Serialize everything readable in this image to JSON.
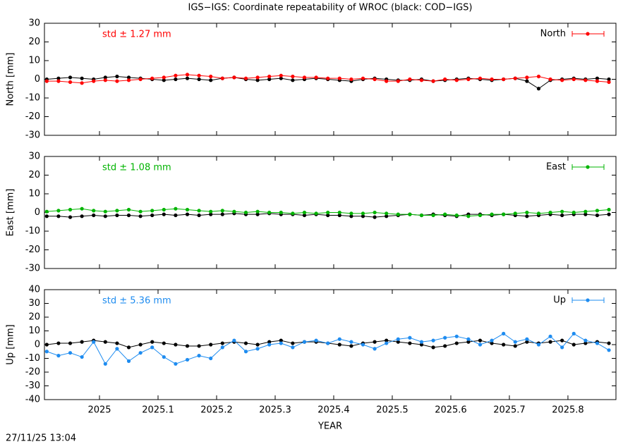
{
  "timestamp": "27/11/25 13:04",
  "chart_data": [
    {
      "type": "line",
      "title": "IGS−IGS: Coordinate repeatability of WROC (black: COD−IGS)",
      "ylabel": "North [mm]",
      "annotation": "std ± 1.27 mm",
      "legend": "upper right",
      "xlim": [
        2024.906,
        2025.882
      ],
      "xticks": [
        2025,
        2025.1,
        2025.2,
        2025.3,
        2025.4,
        2025.5,
        2025.6,
        2025.7,
        2025.8
      ],
      "ylim": [
        -30,
        30
      ],
      "yticks": [
        -30,
        -20,
        -10,
        0,
        10,
        20,
        30
      ],
      "x": [
        2024.91,
        2024.93,
        2024.95,
        2024.97,
        2024.99,
        2025.01,
        2025.03,
        2025.05,
        2025.07,
        2025.09,
        2025.11,
        2025.13,
        2025.15,
        2025.17,
        2025.19,
        2025.21,
        2025.23,
        2025.25,
        2025.27,
        2025.29,
        2025.31,
        2025.33,
        2025.35,
        2025.37,
        2025.39,
        2025.41,
        2025.43,
        2025.45,
        2025.47,
        2025.49,
        2025.51,
        2025.53,
        2025.55,
        2025.57,
        2025.59,
        2025.61,
        2025.63,
        2025.65,
        2025.67,
        2025.69,
        2025.71,
        2025.73,
        2025.75,
        2025.77,
        2025.79,
        2025.81,
        2025.83,
        2025.85,
        2025.87
      ],
      "series": [
        {
          "color": "#000000",
          "values": [
            0,
            0.5,
            1,
            0.5,
            0,
            1,
            1.5,
            1,
            0.5,
            0,
            -0.5,
            0,
            0.5,
            0,
            -0.5,
            0.5,
            1,
            0,
            -0.5,
            0,
            0.5,
            -0.5,
            0,
            0.5,
            0,
            -0.5,
            -1,
            0,
            0.5,
            0,
            -0.5,
            -0.5,
            0,
            -1,
            -0.5,
            0,
            0.5,
            0,
            -0.5,
            0,
            0.5,
            -1,
            -5,
            -0.5,
            0,
            0.5,
            0,
            0.5,
            0
          ]
        },
        {
          "name": "North",
          "color": "#ff0000",
          "values": [
            -1,
            -1,
            -1.5,
            -2,
            -1,
            -0.5,
            -1,
            -0.5,
            0,
            0.5,
            1,
            2,
            2.5,
            2,
            1.5,
            0.5,
            1,
            0.5,
            1,
            1.5,
            2,
            1.5,
            1,
            1,
            0.5,
            0.5,
            0,
            0.5,
            0,
            -1,
            -1,
            0,
            -0.5,
            -1,
            0,
            -0.5,
            0,
            0.5,
            0,
            0,
            0.5,
            1,
            1.5,
            0,
            -0.5,
            0,
            -0.5,
            -1,
            -1.5
          ]
        }
      ]
    },
    {
      "type": "line",
      "ylabel": "East [mm]",
      "annotation": "std ± 1.08 mm",
      "legend": "upper right",
      "xlim": [
        2024.906,
        2025.882
      ],
      "xticks": [
        2025,
        2025.1,
        2025.2,
        2025.3,
        2025.4,
        2025.5,
        2025.6,
        2025.7,
        2025.8
      ],
      "ylim": [
        -30,
        30
      ],
      "yticks": [
        -30,
        -20,
        -10,
        0,
        10,
        20,
        30
      ],
      "x": [
        2024.91,
        2024.93,
        2024.95,
        2024.97,
        2024.99,
        2025.01,
        2025.03,
        2025.05,
        2025.07,
        2025.09,
        2025.11,
        2025.13,
        2025.15,
        2025.17,
        2025.19,
        2025.21,
        2025.23,
        2025.25,
        2025.27,
        2025.29,
        2025.31,
        2025.33,
        2025.35,
        2025.37,
        2025.39,
        2025.41,
        2025.43,
        2025.45,
        2025.47,
        2025.49,
        2025.51,
        2025.53,
        2025.55,
        2025.57,
        2025.59,
        2025.61,
        2025.63,
        2025.65,
        2025.67,
        2025.69,
        2025.71,
        2025.73,
        2025.75,
        2025.77,
        2025.79,
        2025.81,
        2025.83,
        2025.85,
        2025.87
      ],
      "series": [
        {
          "color": "#000000",
          "values": [
            -2,
            -2,
            -2.5,
            -2,
            -1.5,
            -2,
            -1.5,
            -1.5,
            -2,
            -1.5,
            -1,
            -1.5,
            -1,
            -1.5,
            -1,
            -1,
            -0.5,
            -1,
            -1,
            -0.5,
            -1,
            -1,
            -1.5,
            -1,
            -1.5,
            -1.5,
            -2,
            -2,
            -2.5,
            -2,
            -1.5,
            -1,
            -1.5,
            -1,
            -1.5,
            -2,
            -1,
            -1,
            -1.5,
            -1,
            -1.5,
            -2,
            -1.5,
            -1,
            -1.5,
            -1,
            -1,
            -1.5,
            -1
          ]
        },
        {
          "name": "East",
          "color": "#00b400",
          "values": [
            0.5,
            1,
            1.5,
            2,
            1,
            0.5,
            1,
            1.5,
            0.5,
            1,
            1.5,
            2,
            1.5,
            1,
            0.5,
            1,
            0.5,
            0,
            0.5,
            0,
            0,
            -0.5,
            0,
            -0.5,
            0,
            0,
            -0.5,
            -0.5,
            0,
            -0.5,
            -1,
            -1,
            -1.5,
            -1.5,
            -1,
            -1.5,
            -2,
            -1.5,
            -1,
            -1,
            -0.5,
            0,
            -0.5,
            0,
            0.5,
            0,
            0.5,
            1,
            1.5
          ]
        }
      ]
    },
    {
      "type": "line",
      "ylabel": "Up [mm]",
      "xlabel": "YEAR",
      "annotation": "std ± 5.36 mm",
      "legend": "upper right",
      "xlim": [
        2024.906,
        2025.882
      ],
      "xticks": [
        2025,
        2025.1,
        2025.2,
        2025.3,
        2025.4,
        2025.5,
        2025.6,
        2025.7,
        2025.8
      ],
      "ylim": [
        -40,
        40
      ],
      "yticks": [
        -40,
        -30,
        -20,
        -10,
        0,
        10,
        20,
        30,
        40
      ],
      "x": [
        2024.91,
        2024.93,
        2024.95,
        2024.97,
        2024.99,
        2025.01,
        2025.03,
        2025.05,
        2025.07,
        2025.09,
        2025.11,
        2025.13,
        2025.15,
        2025.17,
        2025.19,
        2025.21,
        2025.23,
        2025.25,
        2025.27,
        2025.29,
        2025.31,
        2025.33,
        2025.35,
        2025.37,
        2025.39,
        2025.41,
        2025.43,
        2025.45,
        2025.47,
        2025.49,
        2025.51,
        2025.53,
        2025.55,
        2025.57,
        2025.59,
        2025.61,
        2025.63,
        2025.65,
        2025.67,
        2025.69,
        2025.71,
        2025.73,
        2025.75,
        2025.77,
        2025.79,
        2025.81,
        2025.83,
        2025.85,
        2025.87
      ],
      "series": [
        {
          "color": "#000000",
          "values": [
            0,
            1,
            1,
            2,
            3,
            2,
            1,
            -2,
            0,
            2,
            1,
            0,
            -1,
            -1,
            0,
            1,
            2,
            1,
            0,
            2,
            3,
            1,
            2,
            2,
            1,
            0,
            -1,
            1,
            2,
            3,
            2,
            1,
            0,
            -2,
            -1,
            1,
            2,
            3,
            1,
            0,
            -1,
            2,
            1,
            2,
            3,
            0,
            1,
            2,
            1
          ]
        },
        {
          "name": "Up",
          "color": "#1e8cf0",
          "values": [
            -5,
            -8,
            -6,
            -9,
            2,
            -14,
            -3,
            -12,
            -6,
            -2,
            -9,
            -14,
            -11,
            -8,
            -10,
            -2,
            3,
            -5,
            -3,
            0,
            1,
            -2,
            2,
            3,
            1,
            4,
            2,
            0,
            -3,
            1,
            4,
            5,
            2,
            3,
            5,
            6,
            4,
            0,
            3,
            8,
            2,
            4,
            0,
            6,
            -2,
            8,
            3,
            1,
            -4
          ]
        }
      ]
    }
  ]
}
